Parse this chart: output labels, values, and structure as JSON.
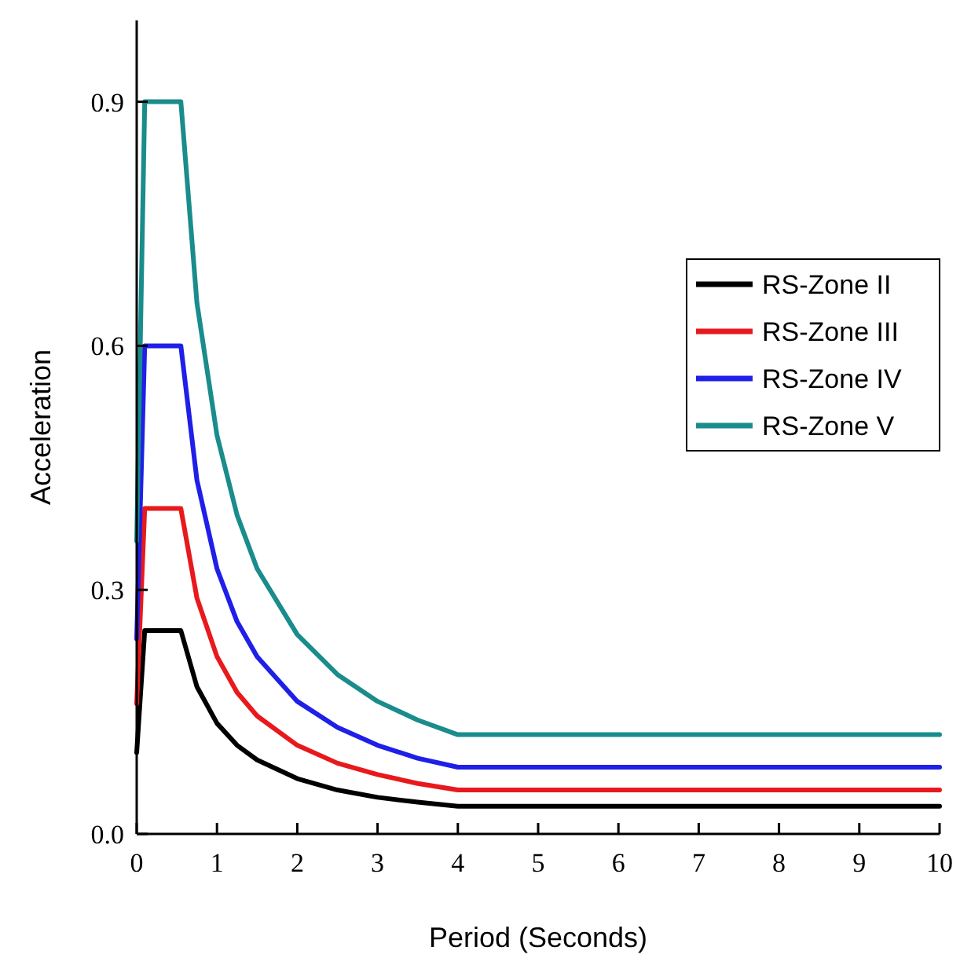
{
  "chart_data": {
    "type": "line",
    "xlabel": "Period (Seconds)",
    "ylabel": "Acceleration",
    "x": [
      0,
      0.1,
      0.55,
      0.75,
      1,
      1.25,
      1.5,
      2,
      2.5,
      3,
      3.5,
      4,
      10
    ],
    "series": [
      {
        "name": "RS-Zone II",
        "color": "#000000",
        "values": [
          0.1,
          0.25,
          0.25,
          0.181,
          0.136,
          0.109,
          0.091,
          0.068,
          0.054,
          0.045,
          0.039,
          0.034,
          0.034
        ]
      },
      {
        "name": "RS-Zone III",
        "color": "#e8191c",
        "values": [
          0.16,
          0.4,
          0.4,
          0.29,
          0.218,
          0.174,
          0.145,
          0.109,
          0.087,
          0.073,
          0.062,
          0.054,
          0.054
        ]
      },
      {
        "name": "RS-Zone IV",
        "color": "#1f1fe8",
        "values": [
          0.24,
          0.6,
          0.6,
          0.435,
          0.326,
          0.261,
          0.218,
          0.163,
          0.131,
          0.109,
          0.093,
          0.082,
          0.082
        ]
      },
      {
        "name": "RS-Zone V",
        "color": "#1a8c8c",
        "values": [
          0.36,
          0.9,
          0.9,
          0.653,
          0.49,
          0.392,
          0.326,
          0.245,
          0.196,
          0.163,
          0.14,
          0.122,
          0.122
        ]
      }
    ],
    "xlim": [
      0,
      10
    ],
    "xticks": [
      0,
      1,
      2,
      3,
      4,
      5,
      6,
      7,
      8,
      9,
      10
    ],
    "ylim": [
      0,
      1.0
    ],
    "yticks": [
      {
        "value": 0,
        "label": "0.0"
      },
      0.3,
      0.6,
      0.9
    ],
    "legend": "right",
    "grid": false,
    "marker": "none",
    "line_style": "solid"
  }
}
